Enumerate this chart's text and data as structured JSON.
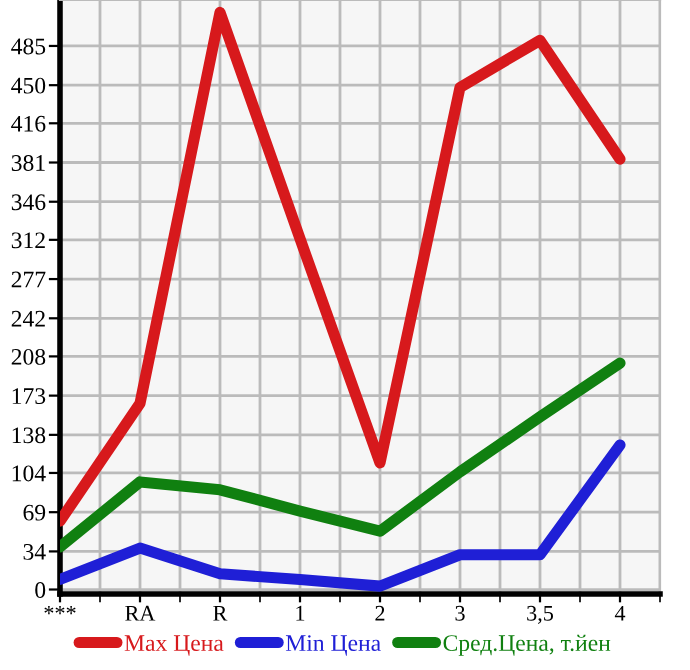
{
  "chart_data": {
    "type": "line",
    "categories": [
      "***",
      "RA",
      "R",
      "1",
      "2",
      "3",
      "3,5",
      "4"
    ],
    "series": [
      {
        "name": "Max Цена",
        "color": "#d7191c",
        "values": [
          61,
          166,
          515,
          313,
          113,
          448,
          490,
          384
        ]
      },
      {
        "name": "Min Цена",
        "color": "#1f1fd6",
        "values": [
          9,
          37,
          14,
          9,
          3,
          31,
          31,
          129
        ]
      },
      {
        "name": "Сред.Цена, т.йен",
        "color": "#108010",
        "values": [
          38,
          96,
          89,
          70,
          52,
          105,
          154,
          202
        ]
      }
    ],
    "ylim": [
      -4,
      526
    ],
    "yticks": [
      0,
      34,
      69,
      104,
      138,
      173,
      208,
      242,
      277,
      312,
      346,
      381,
      416,
      450,
      485
    ],
    "grid": true,
    "legend": "bottom",
    "marker": "none",
    "line_style": "solid"
  }
}
